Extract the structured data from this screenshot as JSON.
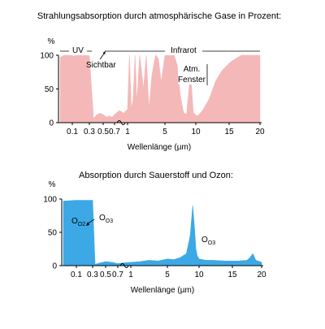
{
  "chart_data": [
    {
      "type": "area",
      "title": "Strahlungsabsorption durch atmosphärische Gase in Prozent:",
      "xlabel": "Wellenlänge (µm)",
      "ylabel": "%",
      "ylim": [
        0,
        100
      ],
      "y_ticks": [
        "0",
        "50",
        "100"
      ],
      "x_ticks": [
        "0.1",
        "0.3",
        "0.5",
        "0.7",
        "1",
        "5",
        "10",
        "15",
        "20"
      ],
      "x_scale": "broken: logarithmic below 1 µm, linear from 1 to 20 µm",
      "fill_color": "#f4b8b8",
      "annotations": [
        "UV",
        "Sichtbar",
        "Infrarot",
        "Atm.",
        "Fenster"
      ],
      "x": [
        0.07,
        0.08,
        0.09,
        0.1,
        0.11,
        0.12,
        0.15,
        0.2,
        0.25,
        0.3,
        0.35,
        0.4,
        0.45,
        0.5,
        0.55,
        0.6,
        0.65,
        0.7,
        0.8,
        0.9,
        1.0,
        1.2,
        1.4,
        1.6,
        1.8,
        2.0,
        2.3,
        2.7,
        3.0,
        3.3,
        3.6,
        4.0,
        4.3,
        4.6,
        5.0,
        5.5,
        6.0,
        6.5,
        7.0,
        7.5,
        8.0,
        8.5,
        9.0,
        9.3,
        9.6,
        9.9,
        10.2,
        10.5,
        11.0,
        12.0,
        13.0,
        14.0,
        15.0,
        16.0,
        17.0,
        18.0,
        19.0,
        20.0
      ],
      "values": [
        97,
        100,
        100,
        100,
        98,
        100,
        100,
        100,
        100,
        99,
        6,
        12,
        14,
        12,
        8,
        10,
        8,
        12,
        18,
        14,
        20,
        100,
        20,
        35,
        100,
        30,
        100,
        50,
        100,
        20,
        70,
        100,
        95,
        60,
        100,
        100,
        100,
        100,
        85,
        40,
        15,
        12,
        60,
        55,
        15,
        12,
        10,
        12,
        18,
        35,
        62,
        78,
        88,
        95,
        100,
        100,
        100,
        100
      ]
    },
    {
      "type": "area",
      "title": "Absorption durch Sauerstoff und Ozon:",
      "xlabel": "Wellenlänge (µm)",
      "ylabel": "%",
      "ylim": [
        0,
        100
      ],
      "y_ticks": [
        "0",
        "50",
        "100"
      ],
      "x_ticks": [
        "0.1",
        "0.3",
        "0.5",
        "0.7",
        "1",
        "5",
        "10",
        "15",
        "20"
      ],
      "x_scale": "broken: logarithmic below 1 µm, linear from 1 to 20 µm",
      "fill_color": "#3ca8e6",
      "annotations": [
        "O2",
        "O3",
        "O3"
      ],
      "x": [
        0.07,
        0.1,
        0.15,
        0.2,
        0.25,
        0.3,
        0.33,
        0.4,
        0.5,
        0.6,
        0.7,
        0.8,
        1.0,
        2.0,
        3.0,
        4.0,
        5.0,
        6.0,
        7.0,
        8.0,
        8.6,
        9.0,
        9.3,
        9.5,
        9.7,
        10.0,
        10.5,
        11.0,
        12.0,
        14.0,
        16.0,
        17.5,
        18.0,
        18.5,
        19.0,
        20.0
      ],
      "values": [
        97,
        98,
        98,
        98,
        98,
        98,
        2,
        4,
        6,
        5,
        3,
        4,
        5,
        6,
        8,
        7,
        10,
        9,
        12,
        18,
        45,
        90,
        55,
        25,
        15,
        10,
        9,
        8,
        8,
        7,
        7,
        8,
        12,
        18,
        8,
        5
      ]
    }
  ]
}
